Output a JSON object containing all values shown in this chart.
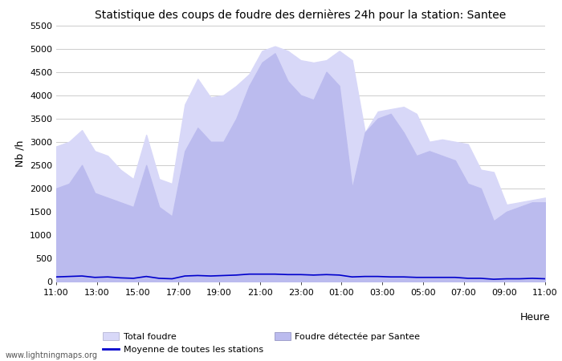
{
  "title": "Statistique des coups de foudre des dernières 24h pour la station: Santee",
  "ylabel": "Nb /h",
  "xlabel": "Heure",
  "watermark": "www.lightningmaps.org",
  "ylim": [
    0,
    5500
  ],
  "yticks": [
    0,
    500,
    1000,
    1500,
    2000,
    2500,
    3000,
    3500,
    4000,
    4500,
    5000,
    5500
  ],
  "xtick_labels": [
    "11:00",
    "13:00",
    "15:00",
    "17:00",
    "19:00",
    "21:00",
    "23:00",
    "01:00",
    "03:00",
    "05:00",
    "07:00",
    "09:00",
    "11:00"
  ],
  "total_foudre_color": "#d8d8f8",
  "santee_color": "#bbbbee",
  "line_color": "#0000cc",
  "background_color": "#ffffff",
  "grid_color": "#cccccc",
  "total_foudre": [
    2900,
    3000,
    3250,
    2800,
    2700,
    2400,
    2200,
    3150,
    2200,
    2100,
    3800,
    4350,
    3950,
    4000,
    4200,
    4450,
    4950,
    5050,
    4950,
    4750,
    4700,
    4750,
    4950,
    4750,
    3200,
    3650,
    3700,
    3750,
    3600,
    3000,
    3050,
    3000,
    2950,
    2400,
    2350,
    1650,
    1700,
    1750,
    1800
  ],
  "santee": [
    2000,
    2100,
    2500,
    1900,
    1800,
    1700,
    1600,
    2500,
    1600,
    1400,
    2800,
    3300,
    3000,
    3000,
    3500,
    4200,
    4700,
    4900,
    4300,
    4000,
    3900,
    4500,
    4200,
    2000,
    3200,
    3500,
    3600,
    3200,
    2700,
    2800,
    2700,
    2600,
    2100,
    2000,
    1300,
    1500,
    1600,
    1700,
    1700
  ],
  "avg_line": [
    100,
    110,
    120,
    90,
    100,
    80,
    70,
    110,
    70,
    60,
    120,
    130,
    120,
    130,
    140,
    160,
    160,
    160,
    150,
    150,
    140,
    150,
    140,
    100,
    110,
    110,
    100,
    100,
    90,
    90,
    90,
    90,
    70,
    70,
    50,
    60,
    60,
    70,
    60
  ]
}
